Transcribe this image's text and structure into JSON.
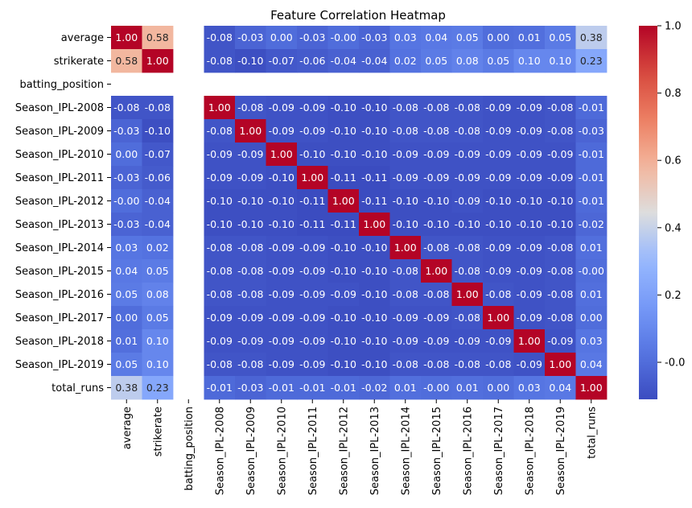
{
  "chart_data": {
    "type": "heatmap",
    "title": "Feature Correlation Heatmap",
    "colormap": "coolwarm",
    "labels": [
      "average",
      "strikerate",
      "batting_position",
      "Season_IPL-2008",
      "Season_IPL-2009",
      "Season_IPL-2010",
      "Season_IPL-2011",
      "Season_IPL-2012",
      "Season_IPL-2013",
      "Season_IPL-2014",
      "Season_IPL-2015",
      "Season_IPL-2016",
      "Season_IPL-2017",
      "Season_IPL-2018",
      "Season_IPL-2019",
      "total_runs"
    ],
    "cells": [
      [
        "1.00",
        "0.58",
        "",
        "-0.08",
        "-0.03",
        "0.00",
        "-0.03",
        "-0.00",
        "-0.03",
        "0.03",
        "0.04",
        "0.05",
        "0.00",
        "0.01",
        "0.05",
        "0.38"
      ],
      [
        "0.58",
        "1.00",
        "",
        "-0.08",
        "-0.10",
        "-0.07",
        "-0.06",
        "-0.04",
        "-0.04",
        "0.02",
        "0.05",
        "0.08",
        "0.05",
        "0.10",
        "0.10",
        "0.23"
      ],
      [
        "",
        "",
        "",
        "",
        "",
        "",
        "",
        "",
        "",
        "",
        "",
        "",
        "",
        "",
        "",
        ""
      ],
      [
        "-0.08",
        "-0.08",
        "",
        "1.00",
        "-0.08",
        "-0.09",
        "-0.09",
        "-0.10",
        "-0.10",
        "-0.08",
        "-0.08",
        "-0.08",
        "-0.09",
        "-0.09",
        "-0.08",
        "-0.01"
      ],
      [
        "-0.03",
        "-0.10",
        "",
        "-0.08",
        "1.00",
        "-0.09",
        "-0.09",
        "-0.10",
        "-0.10",
        "-0.08",
        "-0.08",
        "-0.08",
        "-0.09",
        "-0.09",
        "-0.08",
        "-0.03"
      ],
      [
        "0.00",
        "-0.07",
        "",
        "-0.09",
        "-0.09",
        "1.00",
        "-0.10",
        "-0.10",
        "-0.10",
        "-0.09",
        "-0.09",
        "-0.09",
        "-0.09",
        "-0.09",
        "-0.09",
        "-0.01"
      ],
      [
        "-0.03",
        "-0.06",
        "",
        "-0.09",
        "-0.09",
        "-0.10",
        "1.00",
        "-0.11",
        "-0.11",
        "-0.09",
        "-0.09",
        "-0.09",
        "-0.09",
        "-0.09",
        "-0.09",
        "-0.01"
      ],
      [
        "-0.00",
        "-0.04",
        "",
        "-0.10",
        "-0.10",
        "-0.10",
        "-0.11",
        "1.00",
        "-0.11",
        "-0.10",
        "-0.10",
        "-0.09",
        "-0.10",
        "-0.10",
        "-0.10",
        "-0.01"
      ],
      [
        "-0.03",
        "-0.04",
        "",
        "-0.10",
        "-0.10",
        "-0.10",
        "-0.11",
        "-0.11",
        "1.00",
        "-0.10",
        "-0.10",
        "-0.10",
        "-0.10",
        "-0.10",
        "-0.10",
        "-0.02"
      ],
      [
        "0.03",
        "0.02",
        "",
        "-0.08",
        "-0.08",
        "-0.09",
        "-0.09",
        "-0.10",
        "-0.10",
        "1.00",
        "-0.08",
        "-0.08",
        "-0.09",
        "-0.09",
        "-0.08",
        "0.01"
      ],
      [
        "0.04",
        "0.05",
        "",
        "-0.08",
        "-0.08",
        "-0.09",
        "-0.09",
        "-0.10",
        "-0.10",
        "-0.08",
        "1.00",
        "-0.08",
        "-0.09",
        "-0.09",
        "-0.08",
        "-0.00"
      ],
      [
        "0.05",
        "0.08",
        "",
        "-0.08",
        "-0.08",
        "-0.09",
        "-0.09",
        "-0.09",
        "-0.10",
        "-0.08",
        "-0.08",
        "1.00",
        "-0.08",
        "-0.09",
        "-0.08",
        "0.01"
      ],
      [
        "0.00",
        "0.05",
        "",
        "-0.09",
        "-0.09",
        "-0.09",
        "-0.09",
        "-0.10",
        "-0.10",
        "-0.09",
        "-0.09",
        "-0.08",
        "1.00",
        "-0.09",
        "-0.08",
        "0.00"
      ],
      [
        "0.01",
        "0.10",
        "",
        "-0.09",
        "-0.09",
        "-0.09",
        "-0.09",
        "-0.10",
        "-0.10",
        "-0.09",
        "-0.09",
        "-0.09",
        "-0.09",
        "1.00",
        "-0.09",
        "0.03"
      ],
      [
        "0.05",
        "0.10",
        "",
        "-0.08",
        "-0.08",
        "-0.09",
        "-0.09",
        "-0.10",
        "-0.10",
        "-0.08",
        "-0.08",
        "-0.08",
        "-0.08",
        "-0.09",
        "1.00",
        "0.04"
      ],
      [
        "0.38",
        "0.23",
        "",
        "-0.01",
        "-0.03",
        "-0.01",
        "-0.01",
        "-0.01",
        "-0.02",
        "0.01",
        "-0.00",
        "0.01",
        "0.00",
        "0.03",
        "0.04",
        "1.00"
      ]
    ],
    "colorbar": {
      "vmin": -0.11,
      "vmax": 1.0,
      "ticks": [
        "-0.0",
        "0.2",
        "0.4",
        "0.6",
        "0.8",
        "1.0"
      ]
    }
  }
}
